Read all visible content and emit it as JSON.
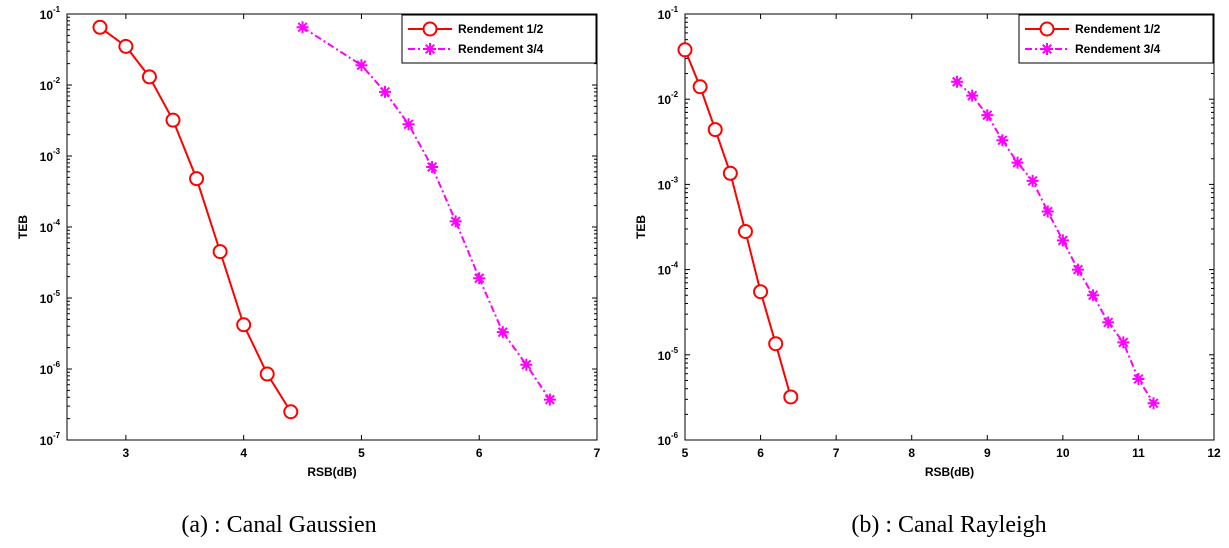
{
  "captions": [
    "(a) : Canal Gaussien",
    "(b) : Canal Rayleigh"
  ],
  "colors": {
    "rate_half": "#ff0000",
    "rate_three_quarters": "#ff00ff"
  },
  "chart_data": [
    {
      "type": "line",
      "xlabel": "RSB(dB)",
      "ylabel": "TEB",
      "yscale": "log",
      "xlim": [
        2.5,
        7
      ],
      "ylim": [
        1e-07,
        0.1
      ],
      "xticks": [
        "3",
        "4",
        "5",
        "6",
        "7"
      ],
      "yticks": [
        {
          "base": "10",
          "exp": "-1"
        },
        {
          "base": "10",
          "exp": "-2"
        },
        {
          "base": "10",
          "exp": "-3"
        },
        {
          "base": "10",
          "exp": "-4"
        },
        {
          "base": "10",
          "exp": "-5"
        },
        {
          "base": "10",
          "exp": "-6"
        },
        {
          "base": "10",
          "exp": "-7"
        }
      ],
      "legend": "top-right",
      "series": [
        {
          "name": "Rendement 1/2",
          "color": "#ff0000",
          "marker": "circle",
          "linestyle": "solid",
          "x": [
            2.78,
            3.0,
            3.2,
            3.4,
            3.6,
            3.8,
            4.0,
            4.2,
            4.4
          ],
          "y": [
            0.065,
            0.035,
            0.013,
            0.0032,
            0.00048,
            4.5e-05,
            4.2e-06,
            8.5e-07,
            2.5e-07
          ]
        },
        {
          "name": "Rendement 3/4",
          "color": "#ff00ff",
          "marker": "asterisk",
          "linestyle": "dashdot",
          "x": [
            4.5,
            5.0,
            5.2,
            5.4,
            5.6,
            5.8,
            6.0,
            6.2,
            6.4,
            6.6
          ],
          "y": [
            0.065,
            0.019,
            0.008,
            0.0028,
            0.0007,
            0.00012,
            1.9e-05,
            3.3e-06,
            1.15e-06,
            3.7e-07
          ]
        }
      ]
    },
    {
      "type": "line",
      "xlabel": "RSB(dB)",
      "ylabel": "TEB",
      "yscale": "log",
      "xlim": [
        5,
        12
      ],
      "ylim": [
        1e-06,
        0.1
      ],
      "xticks": [
        "5",
        "6",
        "7",
        "8",
        "9",
        "10",
        "11",
        "12"
      ],
      "yticks": [
        {
          "base": "10",
          "exp": "-1"
        },
        {
          "base": "10",
          "exp": "-2"
        },
        {
          "base": "10",
          "exp": "-3"
        },
        {
          "base": "10",
          "exp": "-4"
        },
        {
          "base": "10",
          "exp": "-5"
        },
        {
          "base": "10",
          "exp": "-6"
        }
      ],
      "legend": "top-right",
      "series": [
        {
          "name": "Rendement 1/2",
          "color": "#ff0000",
          "marker": "circle",
          "linestyle": "solid",
          "x": [
            5.0,
            5.2,
            5.4,
            5.6,
            5.8,
            6.0,
            6.2,
            6.4
          ],
          "y": [
            0.038,
            0.014,
            0.0044,
            0.00135,
            0.00028,
            5.5e-05,
            1.35e-05,
            3.2e-06
          ]
        },
        {
          "name": "Rendement 3/4",
          "color": "#ff00ff",
          "marker": "asterisk",
          "linestyle": "dashdot",
          "x": [
            8.6,
            8.8,
            9.0,
            9.2,
            9.4,
            9.6,
            9.8,
            10.0,
            10.2,
            10.4,
            10.6,
            10.8,
            11.0,
            11.2
          ],
          "y": [
            0.016,
            0.011,
            0.0065,
            0.0033,
            0.0018,
            0.0011,
            0.00048,
            0.00022,
            0.0001,
            5e-05,
            2.4e-05,
            1.4e-05,
            5.2e-06,
            2.7e-06
          ]
        }
      ]
    }
  ]
}
